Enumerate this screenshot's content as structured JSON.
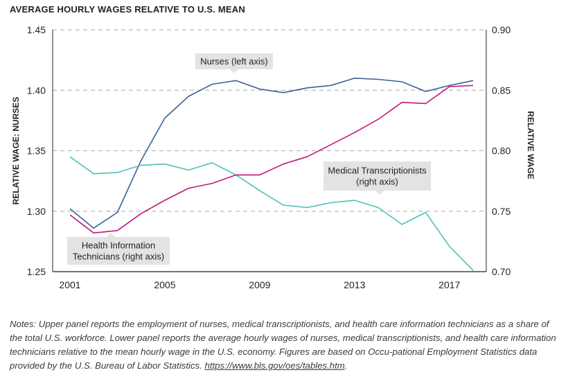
{
  "colors": {
    "nurses": "#3d5f95",
    "transcriptionists": "#c2177a",
    "health_info": "#4dbfb8",
    "grid": "#b9b9b9",
    "callout_bg": "#e3e3e3",
    "axis": "#231f20"
  },
  "chart_data": {
    "type": "line",
    "title": "AVERAGE HOURLY WAGES RELATIVE TO U.S. MEAN",
    "xlabel": "",
    "ylabel_left": "RELATIVE WAGE: NURSES",
    "ylabel_right": "RELATIVE WAGE",
    "x": [
      2001,
      2002,
      2003,
      2004,
      2005,
      2006,
      2007,
      2008,
      2009,
      2010,
      2011,
      2012,
      2013,
      2014,
      2015,
      2016,
      2017,
      2018
    ],
    "x_ticks": [
      "2001",
      "2005",
      "2009",
      "2013",
      "2017"
    ],
    "ylim_left": [
      1.25,
      1.45
    ],
    "yticks_left": [
      "1.25",
      "1.30",
      "1.35",
      "1.40",
      "1.45"
    ],
    "ylim_right": [
      0.7,
      0.9
    ],
    "yticks_right": [
      "0.70",
      "0.75",
      "0.80",
      "0.85",
      "0.90"
    ],
    "grid": "horizontal dashed",
    "series": [
      {
        "name": "Nurses (left axis)",
        "axis": "left",
        "color_key": "nurses",
        "values": [
          1.302,
          1.286,
          1.299,
          1.342,
          1.377,
          1.395,
          1.405,
          1.408,
          1.401,
          1.398,
          1.402,
          1.404,
          1.41,
          1.409,
          1.407,
          1.399,
          1.404,
          1.408
        ]
      },
      {
        "name": "Medical Transcriptionists (right axis)",
        "axis": "right",
        "color_key": "health_info",
        "values": [
          0.795,
          0.781,
          0.782,
          0.788,
          0.789,
          0.784,
          0.79,
          0.78,
          0.767,
          0.755,
          0.753,
          0.757,
          0.759,
          0.753,
          0.739,
          0.749,
          0.721,
          0.701
        ]
      },
      {
        "name": "Health Information Technicians (right axis)",
        "axis": "right",
        "color_key": "transcriptionists",
        "values": [
          0.747,
          0.732,
          0.734,
          0.748,
          0.759,
          0.769,
          0.773,
          0.78,
          0.78,
          0.789,
          0.795,
          0.805,
          0.815,
          0.826,
          0.84,
          0.839,
          0.853,
          0.854
        ]
      }
    ],
    "annotations": [
      {
        "text": "Nurses (left axis)"
      },
      {
        "text": "Medical Transcriptionists\n(right axis)"
      },
      {
        "text": "Health Information\nTechnicians (right axis)"
      }
    ]
  },
  "notes": {
    "text": "Notes: Upper panel reports the employment of nurses, medical transcriptionists, and health care information technicians as a share of the total U.S. workforce. Lower panel reports the average hourly wages of nurses, medical transcriptionists, and health care information technicians relative to the mean hourly wage in the U.S. economy. Figures are based on Occu-pational Employment Statistics data provided by the U.S. Bureau of Labor Statistics. ",
    "link": "https://www.bls.gov/oes/tables.htm",
    "link_suffix": "."
  }
}
